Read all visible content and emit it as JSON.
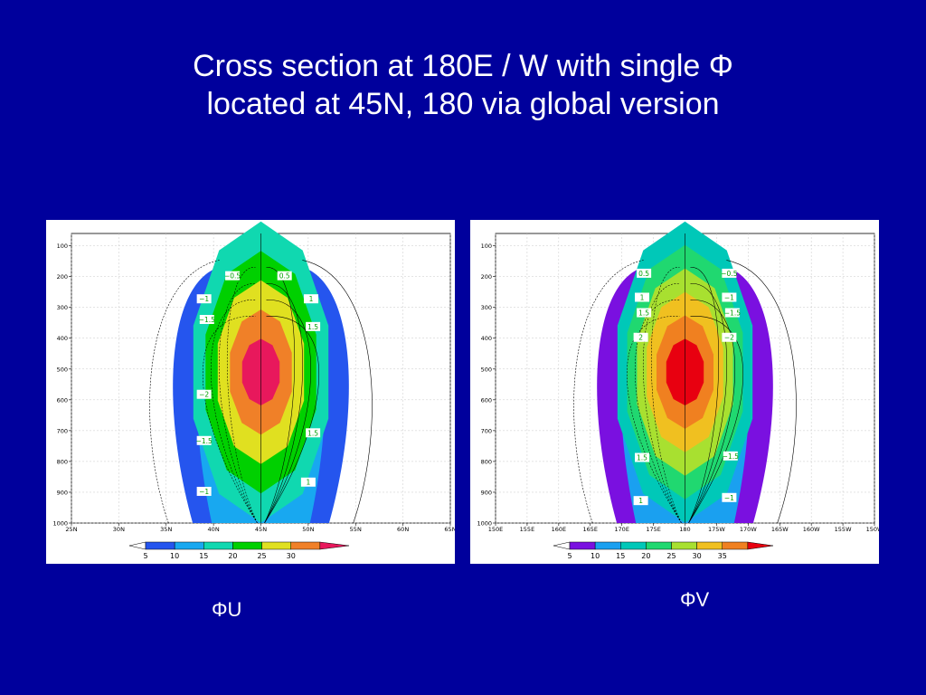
{
  "title": {
    "line1": "Cross section at 180E / W with single Φ",
    "line2": "located at 45N, 180 via global version"
  },
  "chart_data": [
    {
      "type": "heatmap",
      "caption": "ΦU",
      "y_ticks": [
        "100",
        "200",
        "300",
        "400",
        "500",
        "600",
        "700",
        "800",
        "900",
        "1000"
      ],
      "y_values": [
        100,
        200,
        300,
        400,
        500,
        600,
        700,
        800,
        900,
        1000
      ],
      "ylim": [
        1000,
        60
      ],
      "x_ticks": [
        "25N",
        "30N",
        "35N",
        "40N",
        "45N",
        "50N",
        "55N",
        "60N",
        "65N"
      ],
      "xlim": [
        25,
        65
      ],
      "center": [
        45,
        510
      ],
      "fill_levels": [
        5,
        10,
        15,
        20,
        25,
        30
      ],
      "fill_colors": [
        "#2555ee",
        "#18a8f0",
        "#10d8b0",
        "#00d000",
        "#e0e020",
        "#f08028",
        "#e8185c"
      ],
      "colorbar_labels": [
        "5",
        "10",
        "15",
        "20",
        "25",
        "30"
      ],
      "contour_labels": [
        {
          "text": "−0.5",
          "x": 42.0,
          "y": 200
        },
        {
          "text": "0.5",
          "x": 47.5,
          "y": 200
        },
        {
          "text": "−1",
          "x": 39.0,
          "y": 275
        },
        {
          "text": "1",
          "x": 50.3,
          "y": 275
        },
        {
          "text": "−1.5",
          "x": 39.3,
          "y": 342
        },
        {
          "text": "1.5",
          "x": 50.5,
          "y": 365
        },
        {
          "text": "−2",
          "x": 39.0,
          "y": 585
        },
        {
          "text": "−1.5",
          "x": 39.0,
          "y": 735
        },
        {
          "text": "1.5",
          "x": 50.5,
          "y": 710
        },
        {
          "text": "−1",
          "x": 39.0,
          "y": 900
        },
        {
          "text": "1",
          "x": 50.0,
          "y": 870
        }
      ]
    },
    {
      "type": "heatmap",
      "caption": "ΦV",
      "y_ticks": [
        "100",
        "200",
        "300",
        "400",
        "500",
        "600",
        "700",
        "800",
        "900",
        "1000"
      ],
      "y_values": [
        100,
        200,
        300,
        400,
        500,
        600,
        700,
        800,
        900,
        1000
      ],
      "ylim": [
        1000,
        60
      ],
      "x_ticks": [
        "150E",
        "155E",
        "160E",
        "165E",
        "170E",
        "175E",
        "180",
        "175W",
        "170W",
        "165W",
        "160W",
        "155W",
        "150W"
      ],
      "xlim": [
        150,
        210
      ],
      "center": [
        180,
        510
      ],
      "fill_levels": [
        5,
        10,
        15,
        20,
        25,
        30,
        35
      ],
      "fill_colors": [
        "#7a10e0",
        "#1aa0f0",
        "#00c8b8",
        "#20d870",
        "#a8e030",
        "#f0c020",
        "#f08020",
        "#e80010"
      ],
      "colorbar_labels": [
        "5",
        "10",
        "15",
        "20",
        "25",
        "30",
        "35"
      ],
      "contour_labels": [
        {
          "text": "0.5",
          "x": 173.5,
          "y": 192
        },
        {
          "text": "−0.5",
          "x": 187.0,
          "y": 192
        },
        {
          "text": "1",
          "x": 173.2,
          "y": 270
        },
        {
          "text": "−1",
          "x": 187.0,
          "y": 270
        },
        {
          "text": "1.5",
          "x": 173.5,
          "y": 320
        },
        {
          "text": "−1.5",
          "x": 187.5,
          "y": 320
        },
        {
          "text": "2",
          "x": 173.0,
          "y": 400
        },
        {
          "text": "−2",
          "x": 187.0,
          "y": 400
        },
        {
          "text": "1.5",
          "x": 173.2,
          "y": 790
        },
        {
          "text": "−1.5",
          "x": 187.2,
          "y": 785
        },
        {
          "text": "1",
          "x": 173.0,
          "y": 930
        },
        {
          "text": "−1",
          "x": 187.0,
          "y": 920
        }
      ]
    }
  ]
}
